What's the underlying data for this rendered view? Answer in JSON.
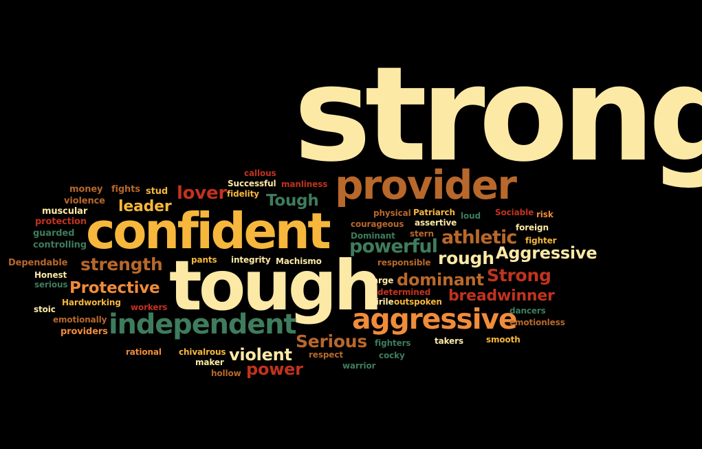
{
  "colors": {
    "background": "#000000",
    "cream": "#FDE9A6",
    "gold": "#F6B73C",
    "orange": "#F08C3A",
    "brown": "#B8682B",
    "red": "#C2321E",
    "green": "#3E7C5D"
  },
  "words": [
    {
      "text": "strong",
      "color": "cream"
    },
    {
      "text": "provider",
      "color": "brown"
    },
    {
      "text": "confident",
      "color": "gold"
    },
    {
      "text": "tough",
      "color": "cream"
    },
    {
      "text": "independent",
      "color": "green"
    },
    {
      "text": "aggressive",
      "color": "orange"
    },
    {
      "text": "Aggressive",
      "color": "cream"
    },
    {
      "text": "Tough",
      "color": "green"
    },
    {
      "text": "lover",
      "color": "red"
    },
    {
      "text": "leader",
      "color": "gold"
    },
    {
      "text": "strength",
      "color": "brown"
    },
    {
      "text": "Protective",
      "color": "orange"
    },
    {
      "text": "powerful",
      "color": "green"
    },
    {
      "text": "athletic",
      "color": "brown"
    },
    {
      "text": "rough",
      "color": "cream"
    },
    {
      "text": "dominant",
      "color": "brown"
    },
    {
      "text": "Strong",
      "color": "red"
    },
    {
      "text": "breadwinner",
      "color": "red"
    },
    {
      "text": "Serious",
      "color": "brown"
    },
    {
      "text": "violent",
      "color": "cream"
    },
    {
      "text": "power",
      "color": "red"
    },
    {
      "text": "callous",
      "color": "red"
    },
    {
      "text": "money",
      "color": "brown"
    },
    {
      "text": "fights",
      "color": "brown"
    },
    {
      "text": "stud",
      "color": "gold"
    },
    {
      "text": "Successful",
      "color": "cream"
    },
    {
      "text": "manliness",
      "color": "red"
    },
    {
      "text": "fidelity",
      "color": "gold"
    },
    {
      "text": "violence",
      "color": "brown"
    },
    {
      "text": "muscular",
      "color": "cream"
    },
    {
      "text": "protection",
      "color": "red"
    },
    {
      "text": "guarded",
      "color": "green"
    },
    {
      "text": "controlling",
      "color": "green"
    },
    {
      "text": "Dependable",
      "color": "brown"
    },
    {
      "text": "Honest",
      "color": "cream"
    },
    {
      "text": "serious",
      "color": "green"
    },
    {
      "text": "Hardworking",
      "color": "gold"
    },
    {
      "text": "stoic",
      "color": "cream"
    },
    {
      "text": "workers",
      "color": "red"
    },
    {
      "text": "emotionally",
      "color": "brown"
    },
    {
      "text": "providers",
      "color": "orange"
    },
    {
      "text": "rational",
      "color": "orange"
    },
    {
      "text": "chivalrous",
      "color": "gold"
    },
    {
      "text": "maker",
      "color": "cream"
    },
    {
      "text": "hollow",
      "color": "brown"
    },
    {
      "text": "pants",
      "color": "gold"
    },
    {
      "text": "integrity",
      "color": "cream"
    },
    {
      "text": "Machismo",
      "color": "cream"
    },
    {
      "text": "physical",
      "color": "brown"
    },
    {
      "text": "Patriarch",
      "color": "gold"
    },
    {
      "text": "loud",
      "color": "green"
    },
    {
      "text": "Sociable",
      "color": "red"
    },
    {
      "text": "risk",
      "color": "orange"
    },
    {
      "text": "courageous",
      "color": "brown"
    },
    {
      "text": "assertive",
      "color": "cream"
    },
    {
      "text": "Dominant",
      "color": "green"
    },
    {
      "text": "stern",
      "color": "brown"
    },
    {
      "text": "foreign",
      "color": "cream"
    },
    {
      "text": "fighter",
      "color": "gold"
    },
    {
      "text": "responsible",
      "color": "brown"
    },
    {
      "text": "large",
      "color": "cream"
    },
    {
      "text": "determined",
      "color": "red"
    },
    {
      "text": "virile",
      "color": "cream"
    },
    {
      "text": "outspoken",
      "color": "gold"
    },
    {
      "text": "dancers",
      "color": "green"
    },
    {
      "text": "emotionless",
      "color": "brown"
    },
    {
      "text": "fighters",
      "color": "green"
    },
    {
      "text": "takers",
      "color": "cream"
    },
    {
      "text": "smooth",
      "color": "gold"
    },
    {
      "text": "respect",
      "color": "brown"
    },
    {
      "text": "cocky",
      "color": "green"
    },
    {
      "text": "warrior",
      "color": "green"
    }
  ]
}
